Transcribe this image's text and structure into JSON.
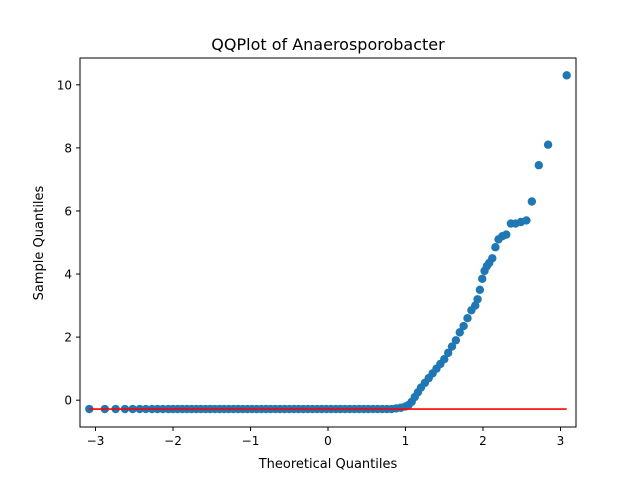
{
  "chart_data": {
    "type": "scatter",
    "title": "QQPlot of Anaerosporobacter",
    "xlabel": "Theoretical Quantiles",
    "ylabel": "Sample Quantiles",
    "xlim": [
      -3.2,
      3.2
    ],
    "ylim": [
      -0.85,
      10.85
    ],
    "xticks": [
      -3,
      -2,
      -1,
      0,
      1,
      2,
      3
    ],
    "xtick_labels": [
      "−3",
      "−2",
      "−1",
      "0",
      "1",
      "2",
      "3"
    ],
    "yticks": [
      0,
      2,
      4,
      6,
      8,
      10
    ],
    "ytick_labels": [
      "0",
      "2",
      "4",
      "6",
      "8",
      "10"
    ],
    "grid": false,
    "legend": "none",
    "colors": {
      "points": "#1f77b4",
      "reference_line": "#ff0000"
    },
    "series": [
      {
        "kind": "points",
        "x": [
          -3.08,
          -2.88,
          -2.74,
          -2.62,
          -2.52,
          -2.43,
          -2.35,
          -2.27,
          -2.2,
          -2.13,
          -2.06,
          -2.0,
          -1.94,
          -1.88,
          -1.82,
          -1.76,
          -1.7,
          -1.64,
          -1.58,
          -1.52,
          -1.46,
          -1.4,
          -1.34,
          -1.28,
          -1.22,
          -1.16,
          -1.1,
          -1.04,
          -0.98,
          -0.92,
          -0.86,
          -0.8,
          -0.74,
          -0.68,
          -0.62,
          -0.56,
          -0.5,
          -0.44,
          -0.38,
          -0.32,
          -0.26,
          -0.2,
          -0.14,
          -0.08,
          -0.02,
          0.04,
          0.1,
          0.16,
          0.22,
          0.28,
          0.34,
          0.4,
          0.46,
          0.52,
          0.58,
          0.64,
          0.7,
          0.76,
          0.82,
          0.88,
          0.94,
          1.0,
          1.04,
          1.08,
          1.12,
          1.16,
          1.2,
          1.25,
          1.3,
          1.35,
          1.4,
          1.45,
          1.5,
          1.55,
          1.6,
          1.65,
          1.7,
          1.75,
          1.8,
          1.85,
          1.9,
          1.93,
          1.96,
          1.99,
          2.02,
          2.05,
          2.08,
          2.12,
          2.16,
          2.2,
          2.25,
          2.3,
          2.36,
          2.42,
          2.49,
          2.56,
          2.63,
          2.72,
          2.84,
          3.08
        ],
        "y": [
          -0.28,
          -0.28,
          -0.28,
          -0.28,
          -0.28,
          -0.28,
          -0.28,
          -0.28,
          -0.28,
          -0.28,
          -0.28,
          -0.28,
          -0.28,
          -0.28,
          -0.28,
          -0.28,
          -0.28,
          -0.28,
          -0.28,
          -0.28,
          -0.28,
          -0.28,
          -0.28,
          -0.28,
          -0.28,
          -0.28,
          -0.28,
          -0.28,
          -0.28,
          -0.28,
          -0.28,
          -0.28,
          -0.28,
          -0.28,
          -0.28,
          -0.28,
          -0.28,
          -0.28,
          -0.28,
          -0.28,
          -0.28,
          -0.28,
          -0.28,
          -0.28,
          -0.28,
          -0.28,
          -0.28,
          -0.28,
          -0.28,
          -0.28,
          -0.28,
          -0.28,
          -0.28,
          -0.28,
          -0.28,
          -0.28,
          -0.28,
          -0.28,
          -0.28,
          -0.26,
          -0.24,
          -0.2,
          -0.15,
          -0.05,
          0.1,
          0.25,
          0.4,
          0.55,
          0.7,
          0.85,
          1.0,
          1.15,
          1.3,
          1.5,
          1.7,
          1.9,
          2.15,
          2.35,
          2.6,
          2.85,
          3.0,
          3.2,
          3.5,
          3.85,
          4.1,
          4.25,
          4.35,
          4.5,
          4.85,
          5.1,
          5.2,
          5.25,
          5.6,
          5.6,
          5.65,
          5.7,
          6.3,
          7.45,
          8.1,
          10.3
        ]
      },
      {
        "kind": "reference_line",
        "x": [
          -3.08,
          3.08
        ],
        "y": [
          -0.28,
          -0.28
        ]
      }
    ]
  }
}
